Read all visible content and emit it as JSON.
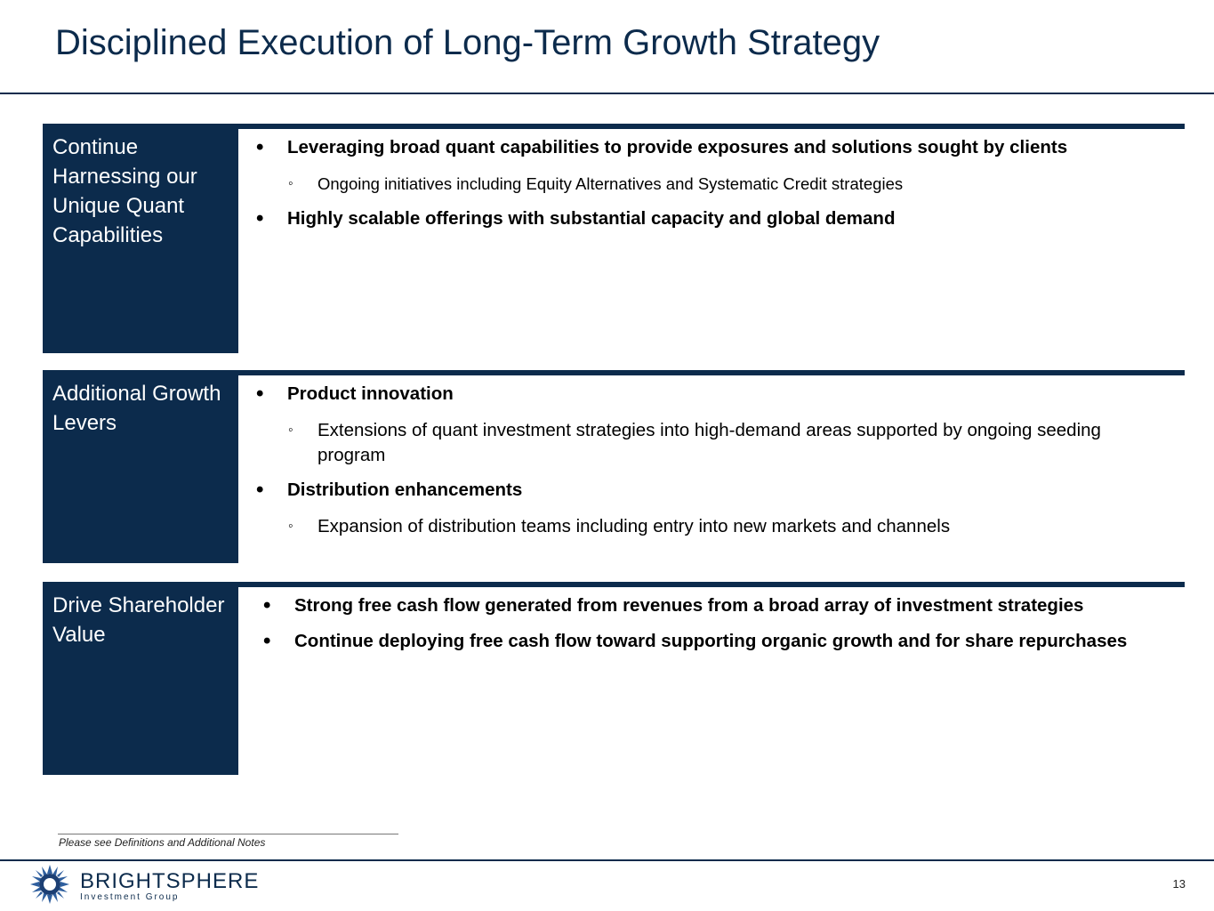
{
  "slide": {
    "title": "Disciplined Execution of Long-Term Growth Strategy",
    "page_number": "13",
    "footnote": "Please see Definitions and Additional Notes"
  },
  "sections": [
    {
      "label": "Continue Harnessing our Unique Quant Capabilities",
      "bullets": [
        "Leveraging broad quant capabilities to provide exposures and solutions sought by clients",
        "Highly scalable offerings with substantial capacity and global demand"
      ],
      "subs": [
        "Ongoing initiatives including Equity Alternatives and Systematic Credit strategies"
      ]
    },
    {
      "label": "Additional Growth Levers",
      "bullets": [
        "Product innovation",
        "Distribution enhancements"
      ],
      "subs": [
        "Extensions of quant investment strategies into high-demand areas supported by ongoing seeding program",
        "Expansion of distribution teams including entry into new markets and channels"
      ]
    },
    {
      "label": "Drive Shareholder Value",
      "bullets": [
        "Strong free cash flow generated from revenues from a broad array of investment strategies",
        "Continue deploying free cash flow toward supporting organic growth and for share repurchases"
      ]
    }
  ],
  "brand": {
    "name": "BRIGHTSPHERE",
    "tagline": "Investment Group",
    "logo_icon": "starburst-logo-icon",
    "color": "#0c2b4c"
  }
}
